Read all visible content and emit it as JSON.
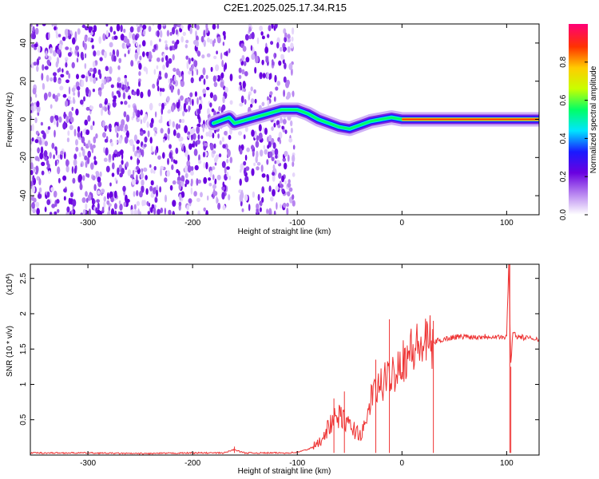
{
  "title": "C2E1.2025.025.17.34.R15",
  "chart_data": [
    {
      "type": "heatmap",
      "xlabel": "Height of straight line (km)",
      "ylabel": "Frequency (Hz)",
      "xlim": [
        -355,
        131
      ],
      "ylim": [
        -50,
        50
      ],
      "xticks": [
        -300,
        -200,
        -100,
        0,
        100
      ],
      "yticks": [
        -40,
        -20,
        0,
        20,
        40
      ],
      "colorbar": {
        "label": "Normalized spectral amplitude",
        "range": [
          0,
          1
        ],
        "ticks": [
          0.0,
          0.2,
          0.4,
          0.6,
          0.8
        ],
        "colormap": [
          "#ffffff",
          "#b784f0",
          "#6a00e0",
          "#1a1aff",
          "#00e5ff",
          "#00ff66",
          "#c8ff00",
          "#ffcc00",
          "#ff3300",
          "#ff0077"
        ]
      },
      "noise_band_x": [
        -355,
        -103
      ],
      "gap_x": [
        -163,
        -155
      ],
      "signal_ridge": {
        "x": [
          -180,
          -170,
          -165,
          -160,
          -115,
          -100,
          -90,
          -80,
          -70,
          -60,
          -50,
          -40,
          -30,
          -20,
          -10,
          0,
          20,
          40,
          60,
          80,
          100,
          110,
          131
        ],
        "frequency": [
          -2,
          0,
          1,
          -2,
          5,
          5,
          3,
          0,
          -2,
          -4,
          -5,
          -3,
          -1,
          0,
          1,
          0,
          0,
          0,
          0,
          0,
          0,
          0,
          0
        ]
      }
    },
    {
      "type": "line",
      "xlabel": "Height of straight line (km)",
      "ylabel": "SNR (10 * v/v)",
      "y_multiplier_label": "(x10",
      "y_multiplier_exp": "4",
      "xlim": [
        -355,
        131
      ],
      "ylim": [
        0,
        2.7
      ],
      "xticks": [
        -300,
        -200,
        -100,
        0,
        100
      ],
      "yticks": [
        0.5,
        1.0,
        1.5,
        2.0,
        2.5
      ],
      "series": [
        {
          "color": "#ee3333",
          "x": [
            -355,
            -300,
            -250,
            -200,
            -170,
            -160,
            -155,
            -150,
            -110,
            -100,
            -90,
            -80,
            -75,
            -70,
            -65,
            -60,
            -55,
            -50,
            -45,
            -40,
            -35,
            -30,
            -25,
            -20,
            -15,
            -10,
            -5,
            0,
            5,
            10,
            15,
            20,
            25,
            30,
            40,
            50,
            60,
            70,
            80,
            90,
            100,
            102,
            104,
            106,
            110,
            120,
            131
          ],
          "y": [
            0.03,
            0.03,
            0.02,
            0.03,
            0.03,
            0.08,
            0.05,
            0.03,
            0.03,
            0.04,
            0.08,
            0.15,
            0.3,
            0.4,
            0.5,
            0.55,
            0.5,
            0.4,
            0.35,
            0.3,
            0.38,
            0.8,
            0.9,
            1.0,
            1.05,
            1.15,
            1.25,
            1.35,
            1.42,
            1.48,
            1.52,
            1.55,
            1.58,
            1.6,
            1.64,
            1.67,
            1.68,
            1.67,
            1.68,
            1.68,
            1.66,
            2.7,
            1.3,
            1.75,
            1.68,
            1.65,
            1.65
          ]
        }
      ],
      "spikes": [
        {
          "x": -160,
          "y": 0.12
        },
        {
          "x": -65,
          "y": 0.8
        },
        {
          "x": -55,
          "y": 0.9
        },
        {
          "x": -25,
          "y": 1.35
        },
        {
          "x": -12,
          "y": 1.92
        },
        {
          "x": 30,
          "y": 1.9
        },
        {
          "x": 103,
          "y": 2.7
        },
        {
          "x": 104,
          "y": 1.25
        }
      ]
    }
  ]
}
